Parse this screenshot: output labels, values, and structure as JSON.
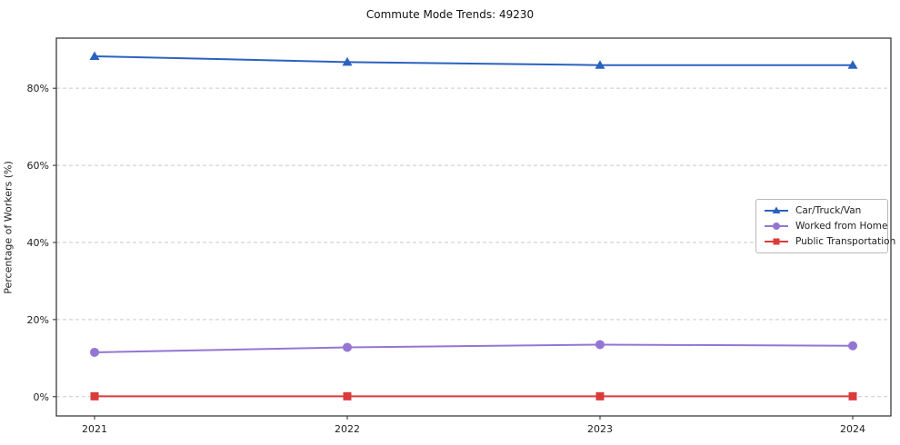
{
  "chart_data": {
    "type": "line",
    "title": "Commute Mode Trends: 49230",
    "xlabel": "",
    "ylabel": "Percentage of Workers (%)",
    "x": [
      "2021",
      "2022",
      "2023",
      "2024"
    ],
    "series": [
      {
        "name": "Car/Truck/Van",
        "values": [
          88.3,
          86.8,
          86.0,
          86.0
        ],
        "color": "#2b62c0",
        "marker": "triangle"
      },
      {
        "name": "Worked from Home",
        "values": [
          11.5,
          12.8,
          13.5,
          13.2
        ],
        "color": "#9575d4",
        "marker": "circle"
      },
      {
        "name": "Public Transportation",
        "values": [
          0.1,
          0.1,
          0.1,
          0.1
        ],
        "color": "#db3b3b",
        "marker": "square"
      }
    ],
    "ylim": [
      -5,
      93
    ],
    "yticks": [
      0,
      20,
      40,
      60,
      80
    ],
    "ytick_labels": [
      "0%",
      "20%",
      "40%",
      "60%",
      "80%"
    ],
    "grid": true,
    "grid_style": "dashed",
    "legend_position": "center-right",
    "frame_color": "#2b2b2b",
    "grid_color": "#c9c9c9",
    "tick_label_color": "#222222"
  }
}
